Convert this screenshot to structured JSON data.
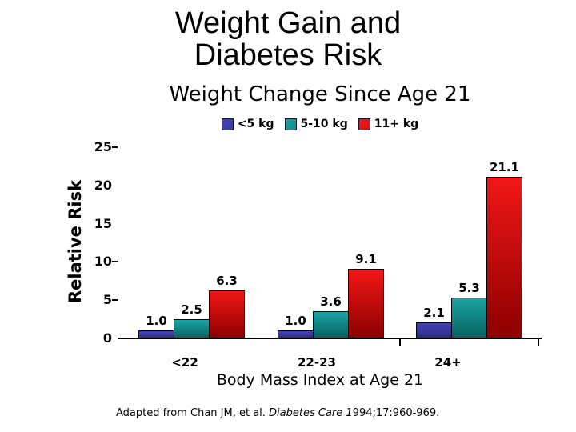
{
  "slide_title": {
    "line1": "Weight Gain and",
    "line2": "Diabetes Risk"
  },
  "chart_data": {
    "type": "bar",
    "title": "Weight Change Since Age 21",
    "xlabel": "Body Mass Index at Age 21",
    "ylabel": "Relative Risk",
    "categories": [
      "<22",
      "22-23",
      "24+"
    ],
    "series": [
      {
        "name": "<5 kg",
        "values": [
          1.0,
          1.0,
          2.1
        ],
        "color": "#3a3aa6",
        "gradient": [
          "#4343b2",
          "#2b2b8a"
        ]
      },
      {
        "name": "5-10 kg",
        "values": [
          2.5,
          3.6,
          5.3
        ],
        "color": "#0e8c8c",
        "gradient": [
          "#1aa3a3",
          "#0a6161"
        ]
      },
      {
        "name": "11+ kg",
        "values": [
          6.3,
          9.1,
          21.1
        ],
        "color": "#dd1111",
        "gradient": [
          "#f21717",
          "#8c0000"
        ]
      }
    ],
    "yticks": [
      0,
      5,
      10,
      15,
      20,
      25
    ],
    "ytick_dashes": [
      5,
      10,
      25
    ],
    "ylim": [
      0,
      25
    ],
    "legend_position": "top",
    "grid": false,
    "value_label_decimals": 1,
    "bar_outline_color": "#000000",
    "axis_color": "#000000",
    "text_color": "#000000",
    "background_color": "#ffffff"
  },
  "citation": {
    "prefix": "Adapted from Chan JM, et al.  ",
    "italic": "Diabetes Care 1",
    "suffix": "994;17:960-969."
  }
}
